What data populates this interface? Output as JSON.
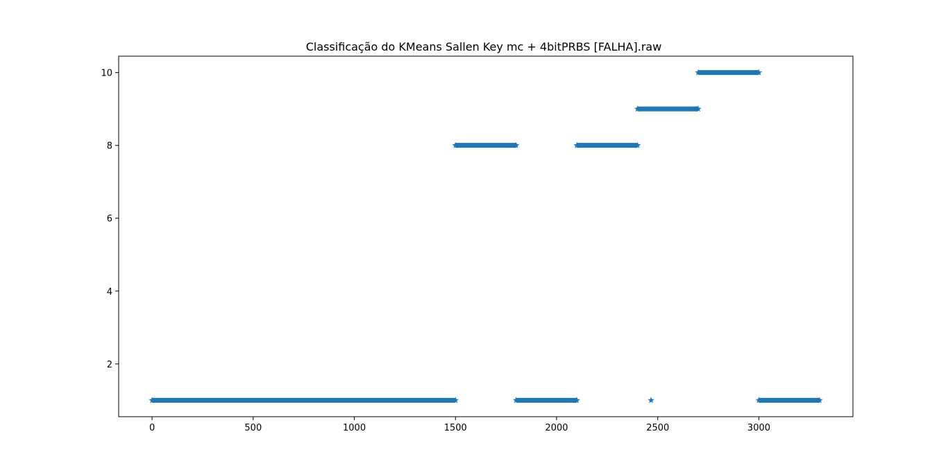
{
  "chart_data": {
    "type": "scatter",
    "title": "Classificação do KMeans Sallen Key mc + 4bitPRBS [FALHA].raw",
    "xlabel": "",
    "ylabel": "",
    "xlim": [
      -165,
      3465
    ],
    "ylim": [
      0.55,
      10.45
    ],
    "xticks": [
      0,
      500,
      1000,
      1500,
      2000,
      2500,
      3000
    ],
    "xtick_labels": [
      "0",
      "500",
      "1000",
      "1500",
      "2000",
      "2500",
      "3000"
    ],
    "yticks": [
      2,
      4,
      6,
      8,
      10
    ],
    "ytick_labels": [
      "2",
      "4",
      "6",
      "8",
      "10"
    ],
    "grid": false,
    "legend": "none",
    "marker": "star",
    "color": "#1f77b4",
    "series": [
      {
        "segments": [
          {
            "x_start": 0,
            "x_end": 1500,
            "y": 1
          },
          {
            "x_start": 1500,
            "x_end": 1800,
            "y": 8
          },
          {
            "x_start": 1800,
            "x_end": 2100,
            "y": 1
          },
          {
            "x_start": 2100,
            "x_end": 2400,
            "y": 8
          },
          {
            "x_start": 2400,
            "x_end": 2700,
            "y": 9
          },
          {
            "x_start": 2700,
            "x_end": 3000,
            "y": 10
          },
          {
            "x_start": 3000,
            "x_end": 3300,
            "y": 1
          }
        ],
        "points": [
          {
            "x": 2467,
            "y": 1
          }
        ]
      }
    ]
  }
}
